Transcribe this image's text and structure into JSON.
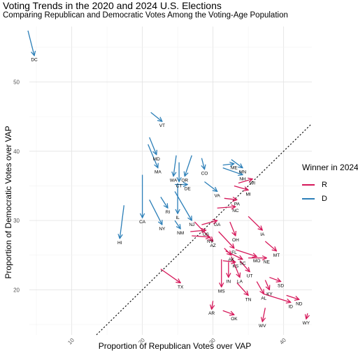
{
  "chart_data": {
    "type": "scatter",
    "title": "Voting Trends in the 2020 and 2024 U.S. Elections",
    "subtitle": "Comparing Republican and Democratic Votes Among the Voting-Age Population",
    "xlabel": "Proportion of Republican Votes over VAP",
    "ylabel": "Proportion of Democratic Votes over VAP",
    "xlim": [
      4,
      44
    ],
    "ylim": [
      13.5,
      58
    ],
    "x_ticks": [
      10,
      20,
      30,
      40
    ],
    "y_ticks": [
      20,
      30,
      40,
      50
    ],
    "grid": true,
    "reference_line": "y = x (dotted)",
    "legend": {
      "title": "Winner in 2024",
      "position": "right",
      "entries": [
        {
          "name": "R",
          "color": "#d6185a"
        },
        {
          "name": "D",
          "color": "#2c7fb8"
        }
      ]
    },
    "colors": {
      "R": "#d6185a",
      "D": "#2c7fb8"
    },
    "points": [
      {
        "state": "DC",
        "winner": "D",
        "x2020": 3.8,
        "y2020": 57.4,
        "x2024": 4.7,
        "y2024": 53.8
      },
      {
        "state": "VT",
        "winner": "D",
        "x2020": 21.2,
        "y2020": 45.6,
        "x2024": 22.8,
        "y2024": 44.3
      },
      {
        "state": "MD",
        "winner": "D",
        "x2020": 21.0,
        "y2020": 42.0,
        "x2024": 22.0,
        "y2024": 39.5
      },
      {
        "state": "MA",
        "winner": "D",
        "x2020": 20.8,
        "y2020": 41.0,
        "x2024": 22.2,
        "y2024": 37.6
      },
      {
        "state": "WA",
        "winner": "D",
        "x2020": 24.8,
        "y2020": 39.4,
        "x2024": 24.4,
        "y2024": 36.4
      },
      {
        "state": "OR",
        "winner": "D",
        "x2020": 27.0,
        "y2020": 39.4,
        "x2024": 26.0,
        "y2024": 36.4
      },
      {
        "state": "CT",
        "winner": "D",
        "x2020": 25.2,
        "y2020": 38.4,
        "x2024": 25.2,
        "y2024": 35.6
      },
      {
        "state": "DE",
        "winner": "D",
        "x2020": 24.6,
        "y2020": 35.2,
        "x2024": 26.4,
        "y2024": 35.2
      },
      {
        "state": "CO",
        "winner": "D",
        "x2020": 28.4,
        "y2020": 39.0,
        "x2024": 28.8,
        "y2024": 37.4
      },
      {
        "state": "ME",
        "winner": "D",
        "x2020": 31.4,
        "y2020": 38.0,
        "x2024": 33.0,
        "y2024": 38.2
      },
      {
        "state": "MN",
        "winner": "D",
        "x2020": 32.6,
        "y2020": 38.8,
        "x2024": 34.2,
        "y2024": 37.6
      },
      {
        "state": "NH",
        "winner": "D",
        "x2020": 31.4,
        "y2020": 37.6,
        "x2024": 34.2,
        "y2024": 36.6
      },
      {
        "state": "VA",
        "winner": "D",
        "x2020": 28.8,
        "y2020": 35.6,
        "x2024": 30.6,
        "y2024": 34.2
      },
      {
        "state": "RI",
        "winner": "D",
        "x2020": 22.6,
        "y2020": 33.4,
        "x2024": 23.6,
        "y2024": 31.8
      },
      {
        "state": "CA",
        "winner": "D",
        "x2020": 20.0,
        "y2020": 36.6,
        "x2024": 20.0,
        "y2024": 30.4
      },
      {
        "state": "NY",
        "winner": "D",
        "x2020": 21.0,
        "y2020": 33.0,
        "x2024": 22.8,
        "y2024": 29.4
      },
      {
        "state": "IL",
        "winner": "D",
        "x2020": 25.0,
        "y2020": 35.4,
        "x2024": 25.0,
        "y2024": 31.0
      },
      {
        "state": "NJ",
        "winner": "D",
        "x2020": 24.6,
        "y2020": 34.2,
        "x2024": 27.0,
        "y2024": 30.0
      },
      {
        "state": "NM",
        "winner": "D",
        "x2020": 24.6,
        "y2020": 30.0,
        "x2024": 25.4,
        "y2024": 28.8
      },
      {
        "state": "HI",
        "winner": "D",
        "x2020": 17.4,
        "y2020": 32.2,
        "x2024": 16.8,
        "y2024": 27.4
      },
      {
        "state": "WI",
        "winner": "R",
        "x2020": 33.6,
        "y2020": 35.4,
        "x2024": 35.6,
        "y2024": 36.0
      },
      {
        "state": "MI",
        "winner": "R",
        "x2020": 33.0,
        "y2020": 35.0,
        "x2024": 35.0,
        "y2024": 34.4
      },
      {
        "state": "PA",
        "winner": "R",
        "x2020": 31.6,
        "y2020": 33.2,
        "x2024": 33.4,
        "y2024": 33.0
      },
      {
        "state": "NC",
        "winner": "R",
        "x2020": 30.6,
        "y2020": 31.8,
        "x2024": 33.2,
        "y2024": 32.0
      },
      {
        "state": "GA",
        "winner": "R",
        "x2020": 28.4,
        "y2020": 29.4,
        "x2024": 30.6,
        "y2024": 30.0
      },
      {
        "state": "US",
        "winner": "R",
        "x2020": 26.8,
        "y2020": 28.4,
        "x2024": 29.0,
        "y2024": 28.6
      },
      {
        "state": "NV",
        "winner": "R",
        "x2020": 27.0,
        "y2020": 27.8,
        "x2024": 29.6,
        "y2024": 27.6
      },
      {
        "state": "AZ",
        "winner": "R",
        "x2020": 27.4,
        "y2020": 29.8,
        "x2024": 30.0,
        "y2024": 27.0
      },
      {
        "state": "TX",
        "winner": "R",
        "x2020": 22.6,
        "y2020": 23.0,
        "x2024": 25.4,
        "y2024": 21.0
      },
      {
        "state": "OH",
        "winner": "R",
        "x2020": 32.4,
        "y2020": 29.8,
        "x2024": 33.2,
        "y2024": 27.8
      },
      {
        "state": "IA",
        "winner": "R",
        "x2020": 35.0,
        "y2020": 30.6,
        "x2024": 37.0,
        "y2024": 28.6
      },
      {
        "state": "MT",
        "winner": "R",
        "x2020": 37.4,
        "y2020": 27.0,
        "x2024": 39.0,
        "y2024": 25.6
      },
      {
        "state": "FL",
        "winner": "R",
        "x2020": 30.8,
        "y2020": 28.4,
        "x2024": 33.0,
        "y2024": 26.0
      },
      {
        "state": "AK",
        "winner": "R",
        "x2020": 31.6,
        "y2020": 26.0,
        "x2024": 32.6,
        "y2024": 25.0
      },
      {
        "state": "MO",
        "winner": "R",
        "x2020": 33.2,
        "y2020": 25.8,
        "x2024": 36.2,
        "y2024": 24.8
      },
      {
        "state": "NE",
        "winner": "R",
        "x2020": 35.0,
        "y2020": 24.6,
        "x2024": 37.6,
        "y2024": 24.6
      },
      {
        "state": "SC",
        "winner": "R",
        "x2020": 31.8,
        "y2020": 25.6,
        "x2024": 34.2,
        "y2024": 24.4
      },
      {
        "state": "KS",
        "winner": "R",
        "x2020": 31.4,
        "y2020": 24.2,
        "x2024": 33.2,
        "y2024": 24.0
      },
      {
        "state": "UT",
        "winner": "R",
        "x2020": 33.8,
        "y2020": 24.2,
        "x2024": 35.2,
        "y2024": 22.6
      },
      {
        "state": "IN",
        "winner": "R",
        "x2020": 32.2,
        "y2020": 24.0,
        "x2024": 32.2,
        "y2024": 21.8
      },
      {
        "state": "LA",
        "winner": "R",
        "x2020": 32.6,
        "y2020": 24.8,
        "x2024": 33.8,
        "y2024": 21.8
      },
      {
        "state": "SD",
        "winner": "R",
        "x2020": 38.0,
        "y2020": 21.8,
        "x2024": 39.6,
        "y2024": 21.2
      },
      {
        "state": "MS",
        "winner": "R",
        "x2020": 31.2,
        "y2020": 24.4,
        "x2024": 31.2,
        "y2024": 20.4
      },
      {
        "state": "KY",
        "winner": "R",
        "x2020": 37.4,
        "y2020": 21.4,
        "x2024": 38.0,
        "y2024": 20.0
      },
      {
        "state": "AL",
        "winner": "R",
        "x2020": 36.2,
        "y2020": 21.2,
        "x2024": 37.2,
        "y2024": 19.4
      },
      {
        "state": "TN",
        "winner": "R",
        "x2020": 33.4,
        "y2020": 21.0,
        "x2024": 35.0,
        "y2024": 19.2
      },
      {
        "state": "ND",
        "winner": "R",
        "x2020": 40.4,
        "y2020": 19.2,
        "x2024": 42.2,
        "y2024": 18.6
      },
      {
        "state": "ID",
        "winner": "R",
        "x2020": 37.2,
        "y2020": 19.4,
        "x2024": 41.0,
        "y2024": 18.2
      },
      {
        "state": "AR",
        "winner": "R",
        "x2020": 30.0,
        "y2020": 18.4,
        "x2024": 29.8,
        "y2024": 17.2
      },
      {
        "state": "OK",
        "winner": "R",
        "x2020": 31.4,
        "y2020": 17.0,
        "x2024": 33.0,
        "y2024": 16.4
      },
      {
        "state": "WV",
        "winner": "R",
        "x2020": 37.4,
        "y2020": 17.4,
        "x2024": 37.0,
        "y2024": 15.4
      },
      {
        "state": "WY",
        "winner": "R",
        "x2020": 43.4,
        "y2020": 16.6,
        "x2024": 43.2,
        "y2024": 15.8
      }
    ]
  }
}
